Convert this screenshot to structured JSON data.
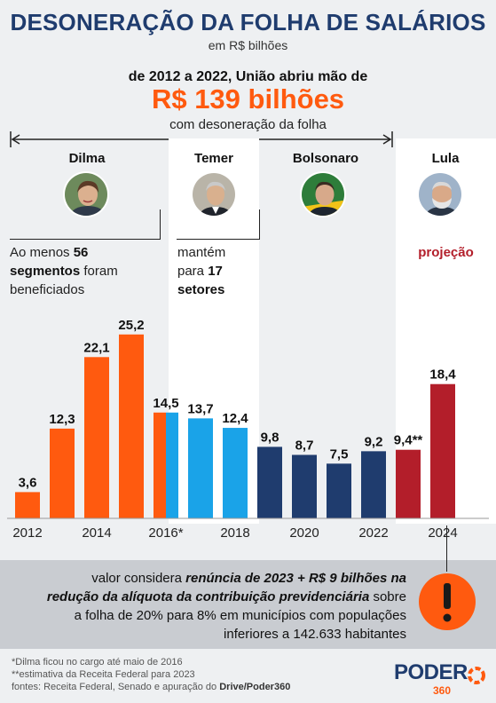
{
  "header": {
    "title": "DESONERAÇÃO DA FOLHA DE SALÁRIOS",
    "subtitle": "em R$ bilhões"
  },
  "highlight": {
    "top": "de 2012 a 2022, União abriu mão de",
    "big": "R$ 139 bilhões",
    "bottom": "com desoneração da folha"
  },
  "governments": [
    {
      "name": "Dilma",
      "avatar_icon": "dilma-portrait-icon"
    },
    {
      "name": "Temer",
      "avatar_icon": "temer-portrait-icon"
    },
    {
      "name": "Bolsonaro",
      "avatar_icon": "bolsonaro-portrait-icon"
    },
    {
      "name": "Lula",
      "avatar_icon": "lula-portrait-icon"
    }
  ],
  "notes": {
    "dilma": {
      "pre": "Ao menos ",
      "b1": "56",
      "b2": "segmentos",
      "mid": " foram",
      "post": "beneficiados"
    },
    "temer": {
      "l1": "mantém",
      "l2pre": "para ",
      "l2b": "17",
      "l3b": "setores"
    },
    "lula": "projeção"
  },
  "chart_data": {
    "type": "bar",
    "categories": [
      "2012",
      "2013",
      "2014",
      "2015",
      "2016",
      "2017",
      "2018",
      "2019",
      "2020",
      "2021",
      "2022",
      "2023",
      "2024"
    ],
    "values": [
      3.6,
      12.3,
      22.1,
      25.2,
      14.5,
      13.7,
      12.4,
      9.8,
      8.7,
      7.5,
      9.2,
      9.4,
      18.4
    ],
    "value_labels": [
      "3,6",
      "12,3",
      "22,1",
      "25,2",
      "14,5",
      "13,7",
      "12,4",
      "9,8",
      "8,7",
      "7,5",
      "9,2",
      "9,4**",
      "18,4"
    ],
    "bar_colors": [
      "#ff5a0f",
      "#ff5a0f",
      "#ff5a0f",
      "#ff5a0f",
      "#ff5a0f",
      "#1aa3e8",
      "#1aa3e8",
      "#1f3c6e",
      "#1f3c6e",
      "#1f3c6e",
      "#1f3c6e",
      "#b31e2a",
      "#b31e2a"
    ],
    "split_bar_colors": [
      "#ff5a0f",
      "#1aa3e8"
    ],
    "x_tick_labels": [
      "2012",
      "2014",
      "2016*",
      "2018",
      "2020",
      "2022",
      "2024"
    ],
    "ylim": [
      0,
      27
    ],
    "grid": false,
    "legend": "none"
  },
  "info": {
    "l1pre": "valor considera ",
    "l1b": "renúncia de 2023 + R$ 9 bilhões na",
    "l2b": "redução da alíquota da contribuição previdenciária",
    "l2post": " sobre",
    "l3": "a folha de 20% para 8% em municípios com populações",
    "l4": "inferiores a 142.633 habitantes"
  },
  "alert_icon": "exclamation-icon",
  "footer": {
    "l1": "*Dilma ficou no cargo até maio de 2016",
    "l2": "**estimativa da Receita Federal para 2023",
    "l3pre": "fontes: Receita Federal, Senado e apuração do ",
    "l3b": "Drive/Poder360"
  },
  "logo": {
    "main": "PODER",
    "sub": "360"
  }
}
